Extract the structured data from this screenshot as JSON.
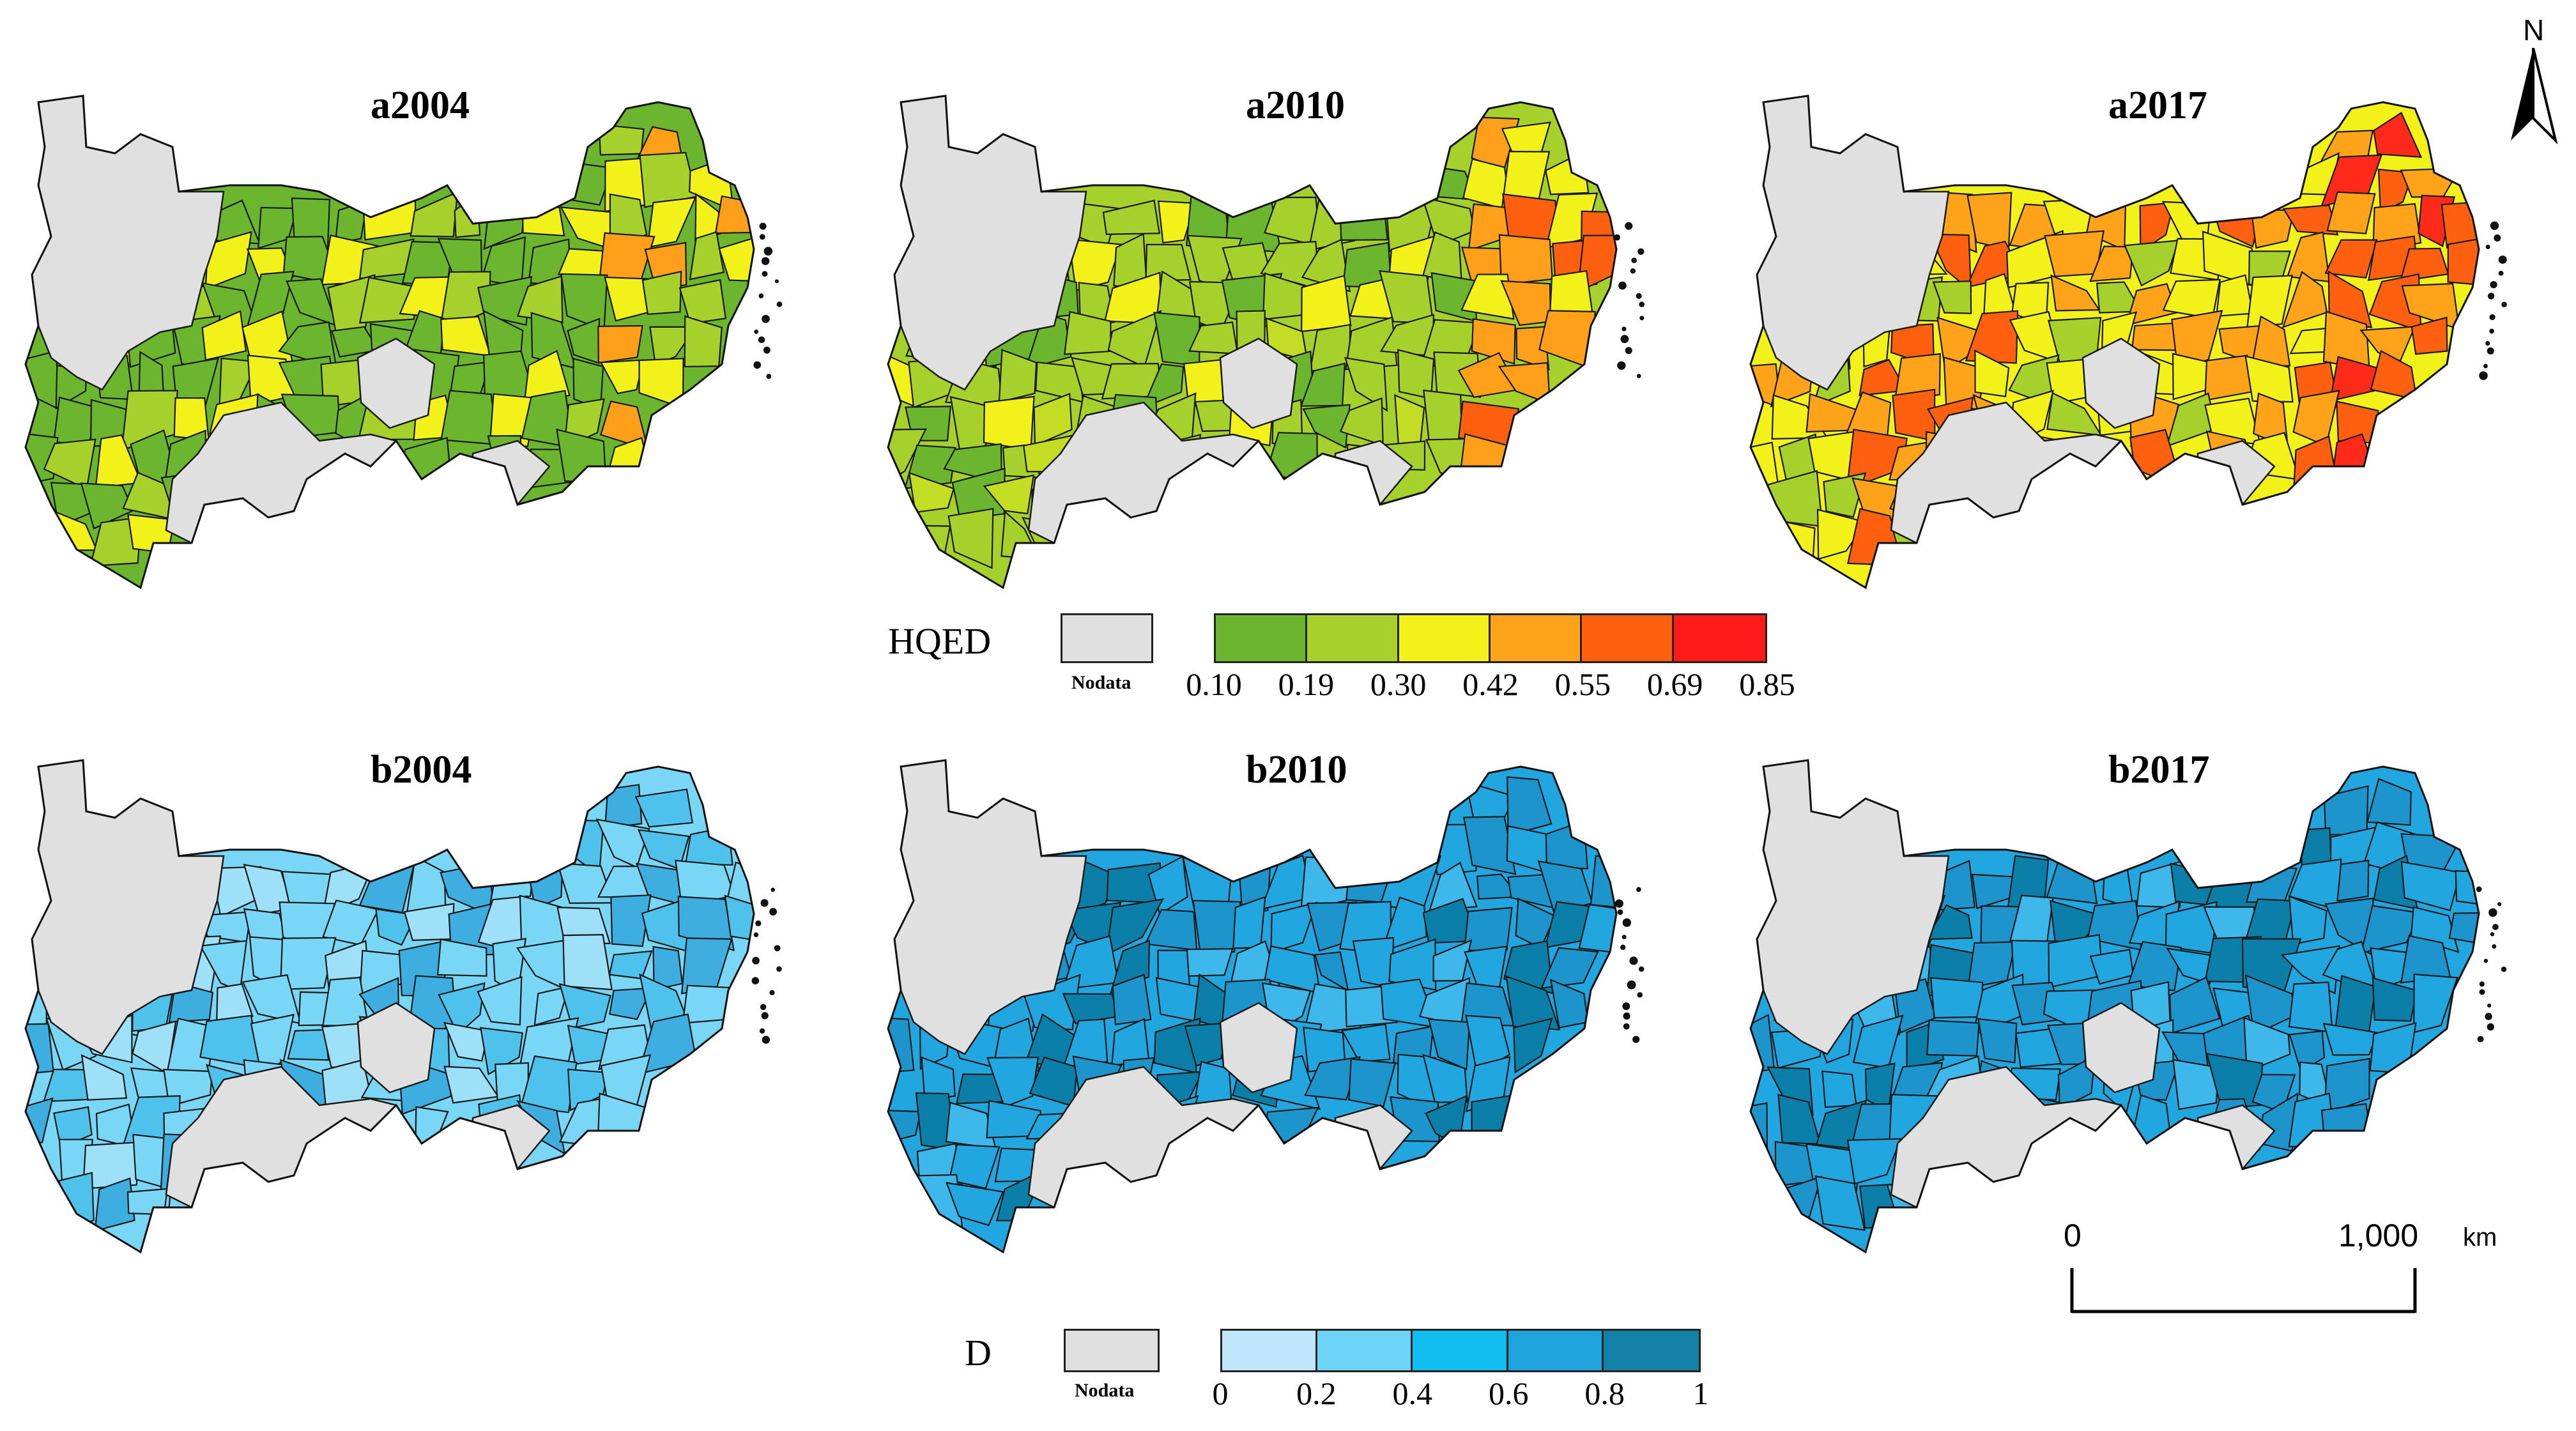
{
  "panels": [
    {
      "id": "a2004",
      "title": "a2004",
      "row": "a",
      "palette": [
        "#6cb52e",
        "#6cb52e",
        "#6cb52e",
        "#a6d02c",
        "#6cb52e",
        "#f2f21a"
      ],
      "east": [
        "#a6d02c",
        "#f2f21a",
        "#ff9f1a"
      ]
    },
    {
      "id": "a2010",
      "title": "a2010",
      "row": "a",
      "palette": [
        "#a6d02c",
        "#a6d02c",
        "#c3dd25",
        "#6cb52e",
        "#f2f21a",
        "#a6d02c"
      ],
      "east": [
        "#ff6010",
        "#ff9f1a",
        "#f2f21a"
      ]
    },
    {
      "id": "a2017",
      "title": "a2017",
      "row": "a",
      "palette": [
        "#f2f21a",
        "#ffa31a",
        "#f2f21a",
        "#a6d02c",
        "#ff6010",
        "#ffa31a"
      ],
      "east": [
        "#ff2a1a",
        "#ff6010",
        "#ffa31a"
      ]
    },
    {
      "id": "b2004",
      "title": "b2004",
      "row": "b",
      "palette": [
        "#7ad6f5",
        "#7ad6f5",
        "#9de0f8",
        "#4fc2ec",
        "#7ad6f5",
        "#3eaee0"
      ],
      "east": [
        "#4fc2ec",
        "#3eaee0",
        "#7ad6f5"
      ]
    },
    {
      "id": "b2010",
      "title": "b2010",
      "row": "b",
      "palette": [
        "#22a6df",
        "#22a6df",
        "#1e94cc",
        "#0b7fa8",
        "#3eb8ea",
        "#22a6df"
      ],
      "east": [
        "#1e94cc",
        "#0b7fa8",
        "#22a6df"
      ]
    },
    {
      "id": "b2017",
      "title": "b2017",
      "row": "b",
      "palette": [
        "#22a6df",
        "#1e94cc",
        "#3eb8ea",
        "#0b7fa8",
        "#22a6df",
        "#1e94cc"
      ],
      "east": [
        "#1e94cc",
        "#22a6df",
        "#0b7fa8"
      ]
    }
  ],
  "nodata_color": "#e0e0e0",
  "legend_hqed": {
    "title": "HQED",
    "nodata_label": "Nodata",
    "colors": [
      "#6cb52e",
      "#a6d02c",
      "#f2f21a",
      "#ffa31a",
      "#ff6010",
      "#ff1a1a"
    ],
    "ticks": [
      "0.10",
      "0.19",
      "0.30",
      "0.42",
      "0.55",
      "0.69",
      "0.85"
    ]
  },
  "legend_d": {
    "title": "D",
    "nodata_label": "Nodata",
    "colors": [
      "#bfe6fb",
      "#6dd4f7",
      "#12bdf0",
      "#1ea3dc",
      "#1380a8"
    ],
    "ticks": [
      "0",
      "0.2",
      "0.4",
      "0.6",
      "0.8",
      "1"
    ]
  },
  "north_arrow": {
    "label": "N"
  },
  "scale_bar": {
    "start": "0",
    "end": "1,000",
    "unit": "km"
  }
}
